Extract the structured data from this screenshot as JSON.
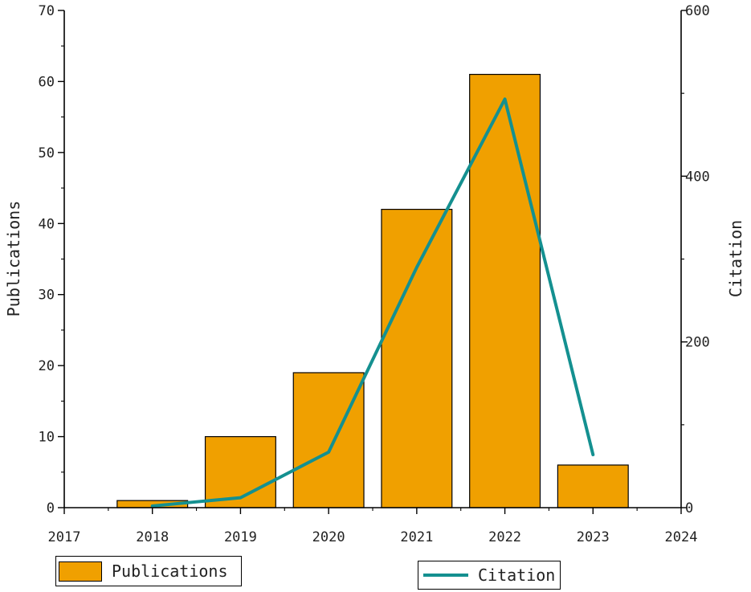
{
  "chart_data": {
    "type": "bar",
    "x_ticks": [
      "2017",
      "2018",
      "2019",
      "2020",
      "2021",
      "2022",
      "2023",
      "2024"
    ],
    "xlim": [
      2017,
      2024
    ],
    "categories": [
      "2018",
      "2019",
      "2020",
      "2021",
      "2022",
      "2023"
    ],
    "series": [
      {
        "name": "Publications",
        "type": "bar",
        "axis": "left",
        "color": "#F0A000",
        "values": [
          1,
          10,
          19,
          42,
          61,
          6
        ]
      },
      {
        "name": "Citation",
        "type": "line",
        "axis": "right",
        "color": "#149090",
        "values": [
          2,
          12,
          67,
          290,
          493,
          64
        ]
      }
    ],
    "ylabel": "Publications",
    "ylim": [
      0,
      70
    ],
    "y_ticks": [
      "0",
      "10",
      "20",
      "30",
      "40",
      "50",
      "60",
      "70"
    ],
    "y2label": "Citation",
    "y2lim": [
      0,
      600
    ],
    "y2_ticks": [
      "0",
      "200",
      "400",
      "600"
    ],
    "grid": false,
    "legend": {
      "placement": "bottom",
      "entries": [
        "Publications",
        "Citation"
      ]
    }
  }
}
